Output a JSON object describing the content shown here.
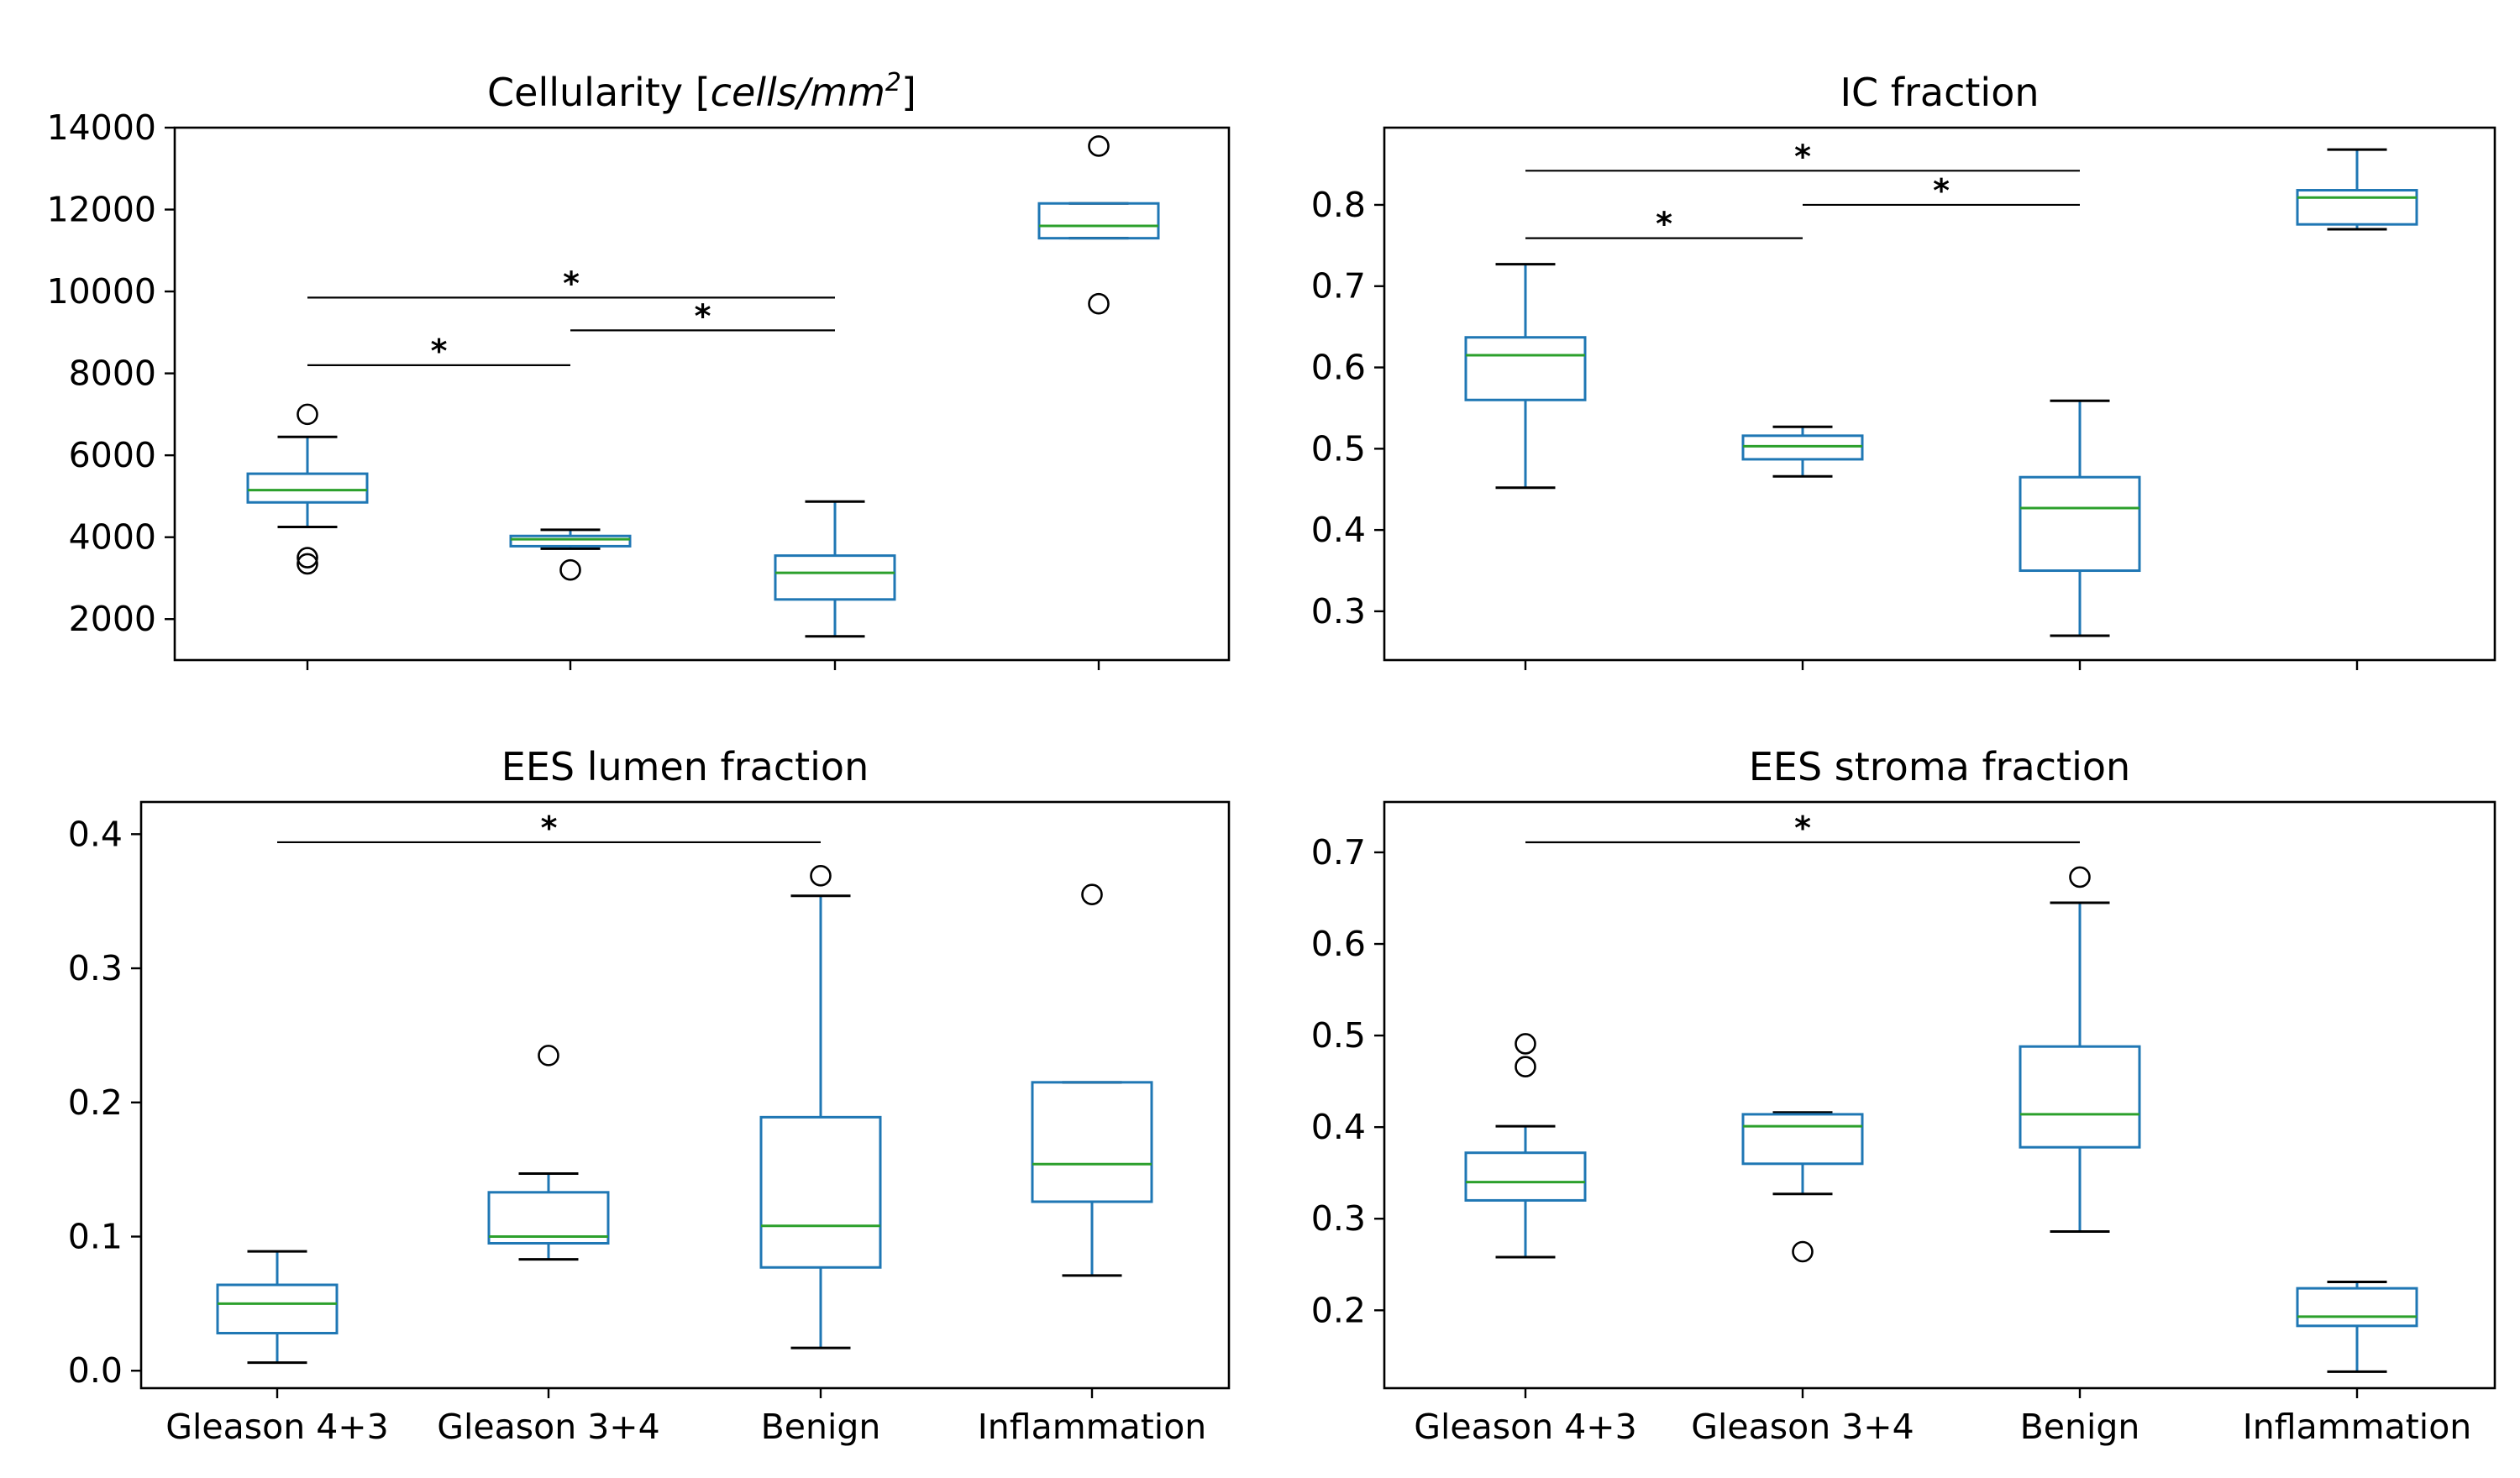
{
  "chart_data": [
    {
      "type": "box",
      "title": "Cellularity [cells/mm²]",
      "title_parts": {
        "prefix": "Cellularity [",
        "unit_main": "cells/mm",
        "unit_sup": "2",
        "suffix": "]"
      },
      "categories": [
        "Gleason 4+3",
        "Gleason 3+4",
        "Benign",
        "Inflammation"
      ],
      "show_xticklabels": false,
      "ylim": [
        1000,
        14000
      ],
      "yticks": [
        2000,
        4000,
        6000,
        8000,
        10000,
        12000,
        14000
      ],
      "ytick_labels": [
        "2000",
        "4000",
        "6000",
        "8000",
        "10000",
        "12000",
        "14000"
      ],
      "boxes": [
        {
          "whislo": 4250,
          "q1": 4850,
          "med": 5150,
          "q3": 5550,
          "whishi": 6450,
          "fliers": [
            7000,
            3500,
            3350
          ]
        },
        {
          "whislo": 3720,
          "q1": 3780,
          "med": 3950,
          "q3": 4030,
          "whishi": 4180,
          "fliers": [
            3200
          ]
        },
        {
          "whislo": 1580,
          "q1": 2480,
          "med": 3130,
          "q3": 3550,
          "whishi": 4870,
          "fliers": []
        },
        {
          "whislo": 11300,
          "q1": 11300,
          "med": 11600,
          "q3": 12150,
          "whishi": 12150,
          "fliers": [
            13550,
            9700
          ]
        }
      ],
      "significance": [
        {
          "from": 0,
          "to": 1,
          "y": 8200,
          "label": "*"
        },
        {
          "from": 1,
          "to": 2,
          "y": 9050,
          "label": "*"
        },
        {
          "from": 0,
          "to": 2,
          "y": 9850,
          "label": "*"
        }
      ]
    },
    {
      "type": "box",
      "title": "IC fraction",
      "categories": [
        "Gleason 4+3",
        "Gleason 3+4",
        "Benign",
        "Inflammation"
      ],
      "show_xticklabels": false,
      "ylim": [
        0.24,
        0.895
      ],
      "yticks": [
        0.3,
        0.4,
        0.5,
        0.6,
        0.7,
        0.8
      ],
      "ytick_labels": [
        "0.3",
        "0.4",
        "0.5",
        "0.6",
        "0.7",
        "0.8"
      ],
      "boxes": [
        {
          "whislo": 0.452,
          "q1": 0.56,
          "med": 0.615,
          "q3": 0.637,
          "whishi": 0.727,
          "fliers": []
        },
        {
          "whislo": 0.466,
          "q1": 0.487,
          "med": 0.503,
          "q3": 0.516,
          "whishi": 0.527,
          "fliers": []
        },
        {
          "whislo": 0.27,
          "q1": 0.35,
          "med": 0.427,
          "q3": 0.465,
          "whishi": 0.559,
          "fliers": []
        },
        {
          "whislo": 0.77,
          "q1": 0.776,
          "med": 0.809,
          "q3": 0.818,
          "whishi": 0.868,
          "fliers": []
        }
      ],
      "significance": [
        {
          "from": 0,
          "to": 1,
          "y": 0.759,
          "label": "*"
        },
        {
          "from": 1,
          "to": 2,
          "y": 0.8,
          "label": "*"
        },
        {
          "from": 0,
          "to": 2,
          "y": 0.842,
          "label": "*"
        }
      ]
    },
    {
      "type": "box",
      "title": "EES lumen fraction",
      "categories": [
        "Gleason 4+3",
        "Gleason 3+4",
        "Benign",
        "Inflammation"
      ],
      "show_xticklabels": true,
      "ylim": [
        -0.013,
        0.424
      ],
      "yticks": [
        0.0,
        0.1,
        0.2,
        0.3,
        0.4
      ],
      "ytick_labels": [
        "0.0",
        "0.1",
        "0.2",
        "0.3",
        "0.4"
      ],
      "boxes": [
        {
          "whislo": 0.006,
          "q1": 0.028,
          "med": 0.05,
          "q3": 0.064,
          "whishi": 0.089,
          "fliers": []
        },
        {
          "whislo": 0.083,
          "q1": 0.095,
          "med": 0.1,
          "q3": 0.133,
          "whishi": 0.147,
          "fliers": [
            0.235
          ]
        },
        {
          "whislo": 0.017,
          "q1": 0.077,
          "med": 0.108,
          "q3": 0.189,
          "whishi": 0.354,
          "fliers": [
            0.369
          ]
        },
        {
          "whislo": 0.071,
          "q1": 0.126,
          "med": 0.154,
          "q3": 0.215,
          "whishi": 0.215,
          "fliers": [
            0.355
          ]
        }
      ],
      "significance": [
        {
          "from": 0,
          "to": 2,
          "y": 0.394,
          "label": "*"
        }
      ]
    },
    {
      "type": "box",
      "title": "EES stroma fraction",
      "categories": [
        "Gleason 4+3",
        "Gleason 3+4",
        "Benign",
        "Inflammation"
      ],
      "show_xticklabels": true,
      "ylim": [
        0.115,
        0.755
      ],
      "yticks": [
        0.2,
        0.3,
        0.4,
        0.5,
        0.6,
        0.7
      ],
      "ytick_labels": [
        "0.2",
        "0.3",
        "0.4",
        "0.5",
        "0.6",
        "0.7"
      ],
      "boxes": [
        {
          "whislo": 0.258,
          "q1": 0.32,
          "med": 0.34,
          "q3": 0.372,
          "whishi": 0.401,
          "fliers": [
            0.491,
            0.466
          ]
        },
        {
          "whislo": 0.327,
          "q1": 0.36,
          "med": 0.401,
          "q3": 0.414,
          "whishi": 0.416,
          "fliers": [
            0.264
          ]
        },
        {
          "whislo": 0.286,
          "q1": 0.378,
          "med": 0.414,
          "q3": 0.488,
          "whishi": 0.645,
          "fliers": [
            0.673
          ]
        },
        {
          "whislo": 0.133,
          "q1": 0.183,
          "med": 0.193,
          "q3": 0.224,
          "whishi": 0.231,
          "fliers": []
        }
      ],
      "significance": [
        {
          "from": 0,
          "to": 2,
          "y": 0.711,
          "label": "*"
        }
      ]
    }
  ],
  "colors": {
    "box": "#1f77b4",
    "median": "#2ca02c",
    "whisker": "#1f77b4",
    "cap": "#000000",
    "flier": "#000000",
    "axes": "#000000"
  }
}
